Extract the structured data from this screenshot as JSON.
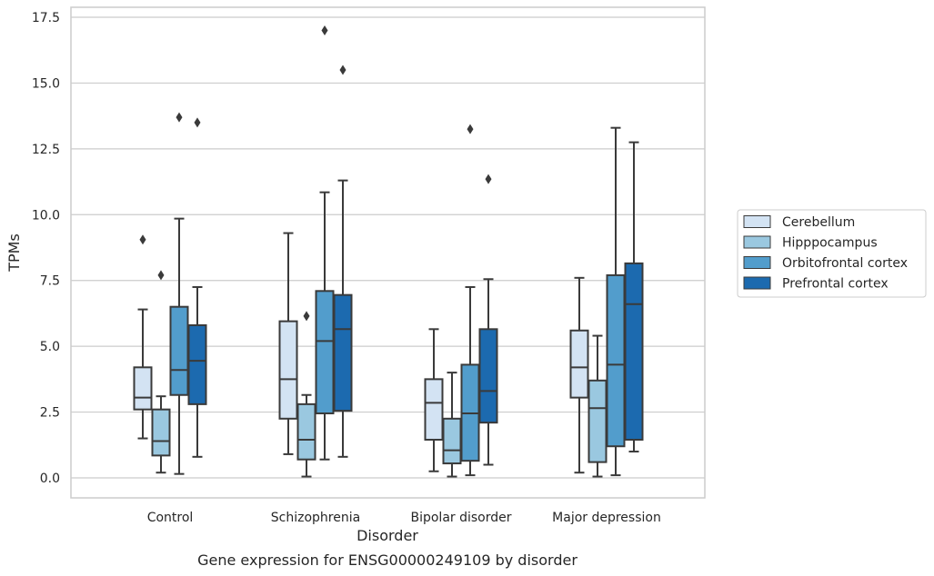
{
  "chart_data": {
    "type": "box",
    "title": "Gene expression for ENSG00000249109 by disorder",
    "xlabel": "Disorder",
    "ylabel": "TPMs",
    "ylim": [
      -0.7,
      17.8
    ],
    "yticks": [
      0.0,
      2.5,
      5.0,
      7.5,
      10.0,
      12.5,
      15.0,
      17.5
    ],
    "ytick_labels": [
      "0.0",
      "2.5",
      "5.0",
      "7.5",
      "10.0",
      "12.5",
      "15.0",
      "17.5"
    ],
    "grid": "horizontal",
    "legend_position": "right",
    "categories": [
      "Control",
      "Schizophrenia",
      "Bipolar disorder",
      "Major depression"
    ],
    "series": [
      {
        "name": "Cerebellum",
        "color": "#d3e3f3",
        "boxes": [
          {
            "whisker_low": 1.5,
            "q1": 2.6,
            "median": 3.05,
            "q3": 4.2,
            "whisker_high": 6.4,
            "outliers": [
              9.05
            ]
          },
          {
            "whisker_low": 0.9,
            "q1": 2.25,
            "median": 3.75,
            "q3": 5.95,
            "whisker_high": 9.3,
            "outliers": []
          },
          {
            "whisker_low": 0.25,
            "q1": 1.45,
            "median": 2.85,
            "q3": 3.75,
            "whisker_high": 5.65,
            "outliers": []
          },
          {
            "whisker_low": 0.2,
            "q1": 3.05,
            "median": 4.2,
            "q3": 5.6,
            "whisker_high": 7.6,
            "outliers": []
          }
        ]
      },
      {
        "name": "Hipppocampus",
        "color": "#9ac8e0",
        "boxes": [
          {
            "whisker_low": 0.2,
            "q1": 0.85,
            "median": 1.4,
            "q3": 2.6,
            "whisker_high": 3.1,
            "outliers": [
              7.7
            ]
          },
          {
            "whisker_low": 0.05,
            "q1": 0.7,
            "median": 1.45,
            "q3": 2.8,
            "whisker_high": 3.15,
            "outliers": [
              6.15
            ]
          },
          {
            "whisker_low": 0.05,
            "q1": 0.55,
            "median": 1.05,
            "q3": 2.25,
            "whisker_high": 4.0,
            "outliers": []
          },
          {
            "whisker_low": 0.05,
            "q1": 0.6,
            "median": 2.65,
            "q3": 3.7,
            "whisker_high": 5.4,
            "outliers": []
          }
        ]
      },
      {
        "name": "Orbitofrontal cortex",
        "color": "#529dcc",
        "boxes": [
          {
            "whisker_low": 0.15,
            "q1": 3.15,
            "median": 4.1,
            "q3": 6.5,
            "whisker_high": 9.85,
            "outliers": [
              13.7
            ]
          },
          {
            "whisker_low": 0.7,
            "q1": 2.45,
            "median": 5.2,
            "q3": 7.1,
            "whisker_high": 10.85,
            "outliers": [
              17.0
            ]
          },
          {
            "whisker_low": 0.1,
            "q1": 0.65,
            "median": 2.45,
            "q3": 4.3,
            "whisker_high": 7.25,
            "outliers": [
              13.25
            ]
          },
          {
            "whisker_low": 0.1,
            "q1": 1.2,
            "median": 4.3,
            "q3": 7.7,
            "whisker_high": 13.3,
            "outliers": []
          }
        ]
      },
      {
        "name": "Prefrontal cortex",
        "color": "#1c6aaf",
        "boxes": [
          {
            "whisker_low": 0.8,
            "q1": 2.8,
            "median": 4.45,
            "q3": 5.8,
            "whisker_high": 7.25,
            "outliers": [
              13.5
            ]
          },
          {
            "whisker_low": 0.8,
            "q1": 2.55,
            "median": 5.65,
            "q3": 6.95,
            "whisker_high": 11.3,
            "outliers": [
              15.5
            ]
          },
          {
            "whisker_low": 0.5,
            "q1": 2.1,
            "median": 3.3,
            "q3": 5.65,
            "whisker_high": 7.55,
            "outliers": [
              11.35
            ]
          },
          {
            "whisker_low": 1.0,
            "q1": 1.45,
            "median": 6.6,
            "q3": 8.15,
            "whisker_high": 12.75,
            "outliers": []
          }
        ]
      }
    ]
  }
}
